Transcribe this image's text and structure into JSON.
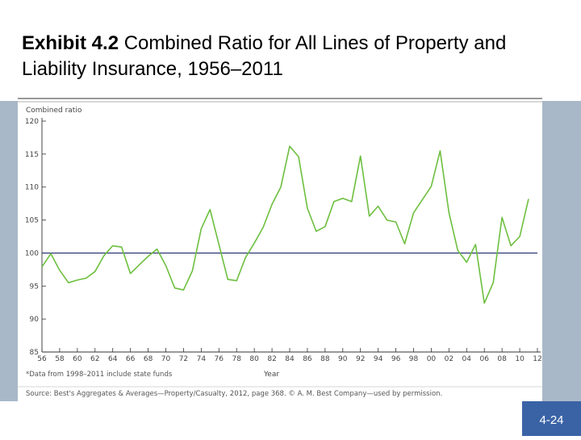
{
  "slide": {
    "title_bold": "Exhibit 4.2",
    "title_rest": " Combined Ratio for All Lines of Property and Liability Insurance, 1956–2011",
    "page_number": "4-24"
  },
  "colors": {
    "series": "#6dbf3f",
    "reference_line": "#1f2a6b",
    "side_bars": "#a9b8c9",
    "badge": "#3a63a6"
  },
  "chart_data": {
    "type": "line",
    "title": "",
    "ylabel": "Combined ratio",
    "xlabel": "Year",
    "ylim": [
      85,
      120
    ],
    "xlim": [
      1956,
      2012
    ],
    "yticks": [
      85,
      90,
      95,
      100,
      105,
      110,
      115,
      120
    ],
    "xtick_labels": [
      "56",
      "58",
      "60",
      "62",
      "64",
      "66",
      "68",
      "70",
      "72",
      "74",
      "76",
      "78",
      "80",
      "82",
      "84",
      "86",
      "88",
      "90",
      "92",
      "94",
      "96",
      "98",
      "00",
      "02",
      "04",
      "06",
      "08",
      "10",
      "12"
    ],
    "reference_line": 100,
    "footnote": "*Data from 1998–2011 include state funds",
    "source": "Source: Best's Aggregates & Averages—Property/Casualty, 2012, page 368. © A. M. Best Company—used by permission.",
    "series": [
      {
        "x": [
          1956,
          1957,
          1958,
          1959,
          1960,
          1961,
          1962,
          1963,
          1964,
          1965,
          1966,
          1967,
          1968,
          1969,
          1970,
          1971,
          1972,
          1973,
          1974,
          1975,
          1976,
          1977,
          1978,
          1979,
          1980,
          1981,
          1982,
          1983,
          1984,
          1985,
          1986,
          1987,
          1988,
          1989,
          1990,
          1991,
          1992,
          1993,
          1994,
          1995,
          1996,
          1997,
          1998,
          1999,
          2000,
          2001,
          2002,
          2003,
          2004,
          2005,
          2006,
          2007,
          2008,
          2009,
          2010,
          2011
        ],
        "values": [
          97.9,
          99.9,
          97.4,
          95.5,
          95.9,
          96.2,
          97.2,
          99.6,
          101.1,
          100.9,
          96.9,
          98.2,
          99.5,
          100.6,
          98.1,
          94.7,
          94.4,
          97.3,
          103.7,
          106.6,
          101.3,
          96.0,
          95.8,
          99.3,
          101.5,
          103.9,
          107.4,
          110.0,
          116.2,
          114.6,
          106.8,
          103.3,
          104.0,
          107.8,
          108.3,
          107.8,
          114.7,
          105.6,
          107.1,
          105.0,
          104.7,
          101.4,
          106.1,
          108.1,
          110.1,
          115.5,
          106.1,
          100.4,
          98.6,
          101.3,
          92.4,
          95.5,
          105.4,
          101.1,
          102.5,
          108.2
        ]
      }
    ]
  }
}
